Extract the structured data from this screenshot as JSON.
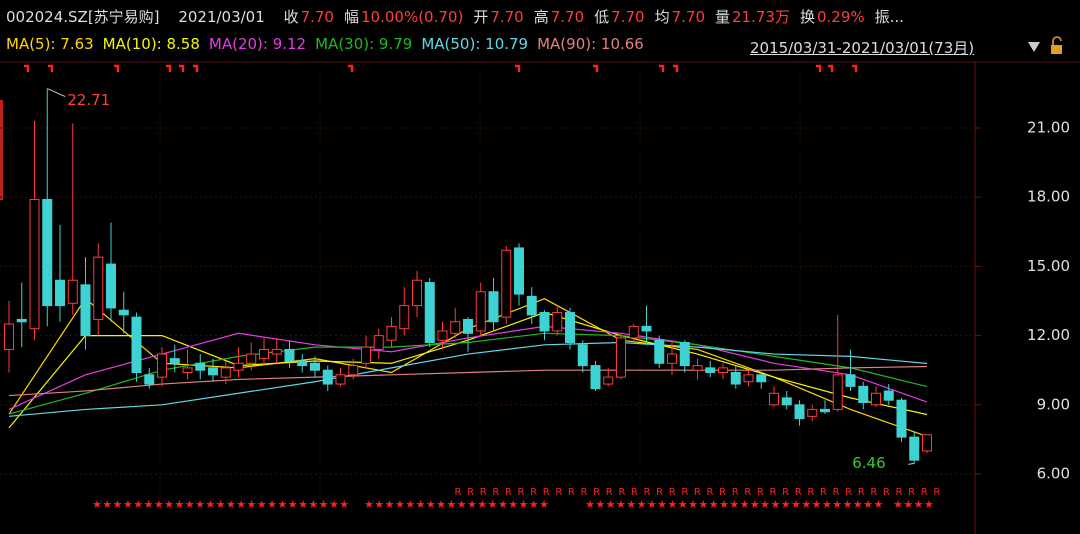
{
  "header": {
    "symbol": "002024.SZ[苏宁易购]",
    "date": "2021/03/01",
    "quote": [
      {
        "label": "收",
        "value": "7.70"
      },
      {
        "label": "幅",
        "value": "10.00%(0.70)"
      },
      {
        "label": "开",
        "value": "7.70"
      },
      {
        "label": "高",
        "value": "7.70"
      },
      {
        "label": "低",
        "value": "7.70"
      },
      {
        "label": "均",
        "value": "7.70"
      },
      {
        "label": "量",
        "value": "21.73万"
      },
      {
        "label": "换",
        "value": "0.29%"
      },
      {
        "label": "振..."
      }
    ],
    "range": "2015/03/31-2021/03/01(73月)"
  },
  "chart_data": {
    "type": "candlestick",
    "candles": {
      "open": [
        11.4,
        12.7,
        12.3,
        17.9,
        14.4,
        13.4,
        14.2,
        12.7,
        15.1,
        13.1,
        12.8,
        10.3,
        10.2,
        11.0,
        10.4,
        10.8,
        10.6,
        10.2,
        10.5,
        10.8,
        11.0,
        11.2,
        11.4,
        10.9,
        10.8,
        10.5,
        9.9,
        10.3,
        10.8,
        11.4,
        11.8,
        12.3,
        13.3,
        14.3,
        11.8,
        12.1,
        12.7,
        12.2,
        13.9,
        12.8,
        15.8,
        13.7,
        13.0,
        12.2,
        13.0,
        11.6,
        10.7,
        9.9,
        10.2,
        11.9,
        12.4,
        11.8,
        10.8,
        11.7,
        10.5,
        10.6,
        10.4,
        10.4,
        10.0,
        10.3,
        9.0,
        9.3,
        9.0,
        8.5,
        8.8,
        8.8,
        10.3,
        9.8,
        9.0,
        9.6,
        9.2,
        7.6,
        7.0
      ],
      "high": [
        13.5,
        14.3,
        21.3,
        22.71,
        16.8,
        21.2,
        15.4,
        16.0,
        16.9,
        13.9,
        13.0,
        10.6,
        11.5,
        11.6,
        11.4,
        11.2,
        11.0,
        10.9,
        11.5,
        11.7,
        11.9,
        11.9,
        11.8,
        11.2,
        11.1,
        10.7,
        10.6,
        11.0,
        12.0,
        12.3,
        12.8,
        14.1,
        14.8,
        14.5,
        12.6,
        13.2,
        12.8,
        14.3,
        14.5,
        15.9,
        16.0,
        14.1,
        13.1,
        13.3,
        13.2,
        11.8,
        10.9,
        10.6,
        12.1,
        12.5,
        13.3,
        12.0,
        11.8,
        11.8,
        11.0,
        10.9,
        10.8,
        10.7,
        10.5,
        10.4,
        9.8,
        9.6,
        9.2,
        9.0,
        9.2,
        12.9,
        11.4,
        10.0,
        9.8,
        9.9,
        9.3,
        7.8,
        7.7
      ],
      "low": [
        10.4,
        11.5,
        11.8,
        12.4,
        12.6,
        12.9,
        11.4,
        12.0,
        12.6,
        12.1,
        10.0,
        9.7,
        9.8,
        10.4,
        10.1,
        10.1,
        10.0,
        9.9,
        10.2,
        10.5,
        10.7,
        10.8,
        10.6,
        10.4,
        10.2,
        9.6,
        9.8,
        10.1,
        10.6,
        11.0,
        11.5,
        12.0,
        12.8,
        11.5,
        11.4,
        11.9,
        11.3,
        12.0,
        12.2,
        12.5,
        13.3,
        12.5,
        11.8,
        12.0,
        11.4,
        10.4,
        9.6,
        9.8,
        10.1,
        11.7,
        11.6,
        10.6,
        10.3,
        10.4,
        10.1,
        10.2,
        10.1,
        9.7,
        9.8,
        9.7,
        8.9,
        8.8,
        8.1,
        8.3,
        8.6,
        8.7,
        9.6,
        8.8,
        8.9,
        9.0,
        7.4,
        6.46,
        6.9
      ],
      "close": [
        12.5,
        12.6,
        17.9,
        13.3,
        13.3,
        14.4,
        12.0,
        15.4,
        13.2,
        12.9,
        10.4,
        9.9,
        11.2,
        10.8,
        10.6,
        10.5,
        10.3,
        10.6,
        10.8,
        11.2,
        11.4,
        11.4,
        10.9,
        10.7,
        10.5,
        9.9,
        10.3,
        10.7,
        11.5,
        12.0,
        12.4,
        13.3,
        14.4,
        11.7,
        12.2,
        12.6,
        12.1,
        13.9,
        12.6,
        15.7,
        13.8,
        12.9,
        12.2,
        13.0,
        11.7,
        10.7,
        9.7,
        10.2,
        11.9,
        12.4,
        12.2,
        10.8,
        11.2,
        10.7,
        10.7,
        10.4,
        10.6,
        9.9,
        10.3,
        10.0,
        9.5,
        9.0,
        8.4,
        8.8,
        8.7,
        10.3,
        9.8,
        9.1,
        9.5,
        9.2,
        7.6,
        6.6,
        7.7
      ]
    },
    "up_color": "#ff3b3b",
    "down_color": "#3fd2d2",
    "ma_x": [
      0,
      6,
      12,
      18,
      24,
      30,
      36,
      42,
      48,
      54,
      60,
      66,
      72
    ],
    "series": [
      {
        "name": "MA(5): 7.63",
        "color": "#ffd700",
        "values": [
          8.6,
          13.6,
          10.8,
          10.6,
          11.0,
          10.4,
          12.3,
          13.6,
          11.8,
          11.4,
          10.2,
          8.8,
          7.63
        ]
      },
      {
        "name": "MA(10): 8.58",
        "color": "#f5f500",
        "values": [
          8.0,
          12.0,
          12.0,
          10.7,
          10.9,
          10.8,
          11.8,
          13.0,
          12.0,
          11.2,
          10.2,
          9.3,
          8.58
        ]
      },
      {
        "name": "MA(20): 9.12",
        "color": "#e63ce6",
        "values": [
          8.8,
          10.3,
          11.2,
          12.1,
          11.6,
          11.3,
          11.9,
          12.4,
          12.1,
          11.6,
          10.8,
          10.3,
          9.12
        ]
      },
      {
        "name": "MA(30): 9.79",
        "color": "#22b822",
        "values": [
          8.6,
          9.5,
          10.5,
          11.1,
          11.5,
          11.5,
          11.7,
          12.1,
          12.0,
          11.6,
          11.1,
          10.6,
          9.79
        ]
      },
      {
        "name": "MA(50): 10.79",
        "color": "#60d8e8",
        "values": [
          8.5,
          8.8,
          9.0,
          9.5,
          10.0,
          10.6,
          11.2,
          11.6,
          11.7,
          11.5,
          11.2,
          11.1,
          10.79
        ]
      },
      {
        "name": "MA(90): 10.66",
        "color": "#e08080",
        "values": [
          9.4,
          9.6,
          9.9,
          10.1,
          10.2,
          10.3,
          10.4,
          10.5,
          10.5,
          10.5,
          10.5,
          10.6,
          10.66
        ]
      }
    ],
    "ylim": [
      4.44,
      23.86
    ],
    "yticks": [
      {
        "value": 6,
        "label": "6.00"
      },
      {
        "value": 9,
        "label": "9.00"
      },
      {
        "value": 12,
        "label": "12.00"
      },
      {
        "value": 15,
        "label": "15.00"
      },
      {
        "value": 18,
        "label": "18.00"
      },
      {
        "value": 21,
        "label": "21.00"
      }
    ],
    "annotations": [
      {
        "text": "22.71",
        "value": 22.71,
        "index": 3,
        "color": "#ff4040"
      },
      {
        "text": "6.46",
        "value": 6.46,
        "index": 71,
        "color": "#33cc33"
      }
    ],
    "signals": {
      "star": "★",
      "r": "R"
    }
  }
}
